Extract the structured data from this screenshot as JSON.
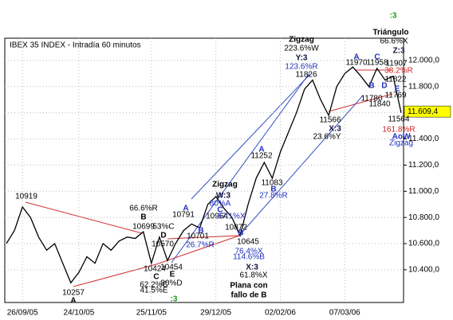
{
  "chart_data": {
    "type": "line",
    "title": "IBEX 35 INDEX - Intradía 60 minutos",
    "color": "#000000",
    "grid": true,
    "categories": [
      null,
      null,
      "26/09/05",
      null,
      null,
      null,
      null,
      null,
      null,
      "24/10/05",
      null,
      null,
      null,
      null,
      null,
      null,
      null,
      null,
      "25/11/05",
      null,
      null,
      null,
      null,
      null,
      null,
      null,
      "29/12/05",
      null,
      null,
      null,
      null,
      null,
      null,
      null,
      "02/02/06",
      null,
      null,
      null,
      null,
      null,
      null,
      null,
      "07/03/06",
      null,
      null,
      null,
      null,
      null,
      null,
      null
    ],
    "values": [
      10600,
      10700,
      10880,
      10800,
      10650,
      10550,
      10600,
      10450,
      10300,
      10380,
      10500,
      10450,
      10600,
      10550,
      10620,
      10650,
      10640,
      10690,
      10450,
      10650,
      10470,
      10600,
      10700,
      10750,
      10720,
      10900,
      10960,
      10870,
      10800,
      10660,
      10900,
      11100,
      11220,
      11100,
      11300,
      11450,
      11600,
      11780,
      11850,
      11700,
      11580,
      11800,
      11900,
      11950,
      11880,
      11800,
      11940,
      11850,
      11880,
      11600
    ],
    "ylim": [
      10150,
      12170
    ],
    "yticks": [
      {
        "value": 10400,
        "label": "10.400,0"
      },
      {
        "value": 10600,
        "label": "10.600,0"
      },
      {
        "value": 10800,
        "label": "10.800,0"
      },
      {
        "value": 11000,
        "label": "11.000,0"
      },
      {
        "value": 11200,
        "label": "11.200,0"
      },
      {
        "value": 11400,
        "label": "11.400,0"
      },
      {
        "value": 11600,
        "label": "11.600,0"
      },
      {
        "value": 11800,
        "label": "11.800,0"
      },
      {
        "value": 12000,
        "label": "12.000,0"
      }
    ],
    "last_value": {
      "value": 11609.4,
      "label": "11.609,4"
    },
    "annotations": [
      ":3",
      "Triángulo",
      "Zigzag",
      "Y:3",
      "223.6%W",
      "123.6%R",
      "11826",
      "A",
      "11970",
      "C",
      "11958",
      "66.6%X",
      "Z:3",
      "11907",
      "38.2%R",
      "11822",
      "B",
      "11780",
      "11840",
      "D",
      "E",
      "11769",
      "11564",
      "161.8%R",
      "AoW",
      "Zigzag",
      "X:3",
      "11566",
      "23.6%Y",
      "A",
      "11252",
      "11083",
      "B",
      "27.8%R",
      "Zigzag",
      "W:3",
      "80%A",
      "C",
      "10964",
      "67.1%X",
      "10872",
      "B",
      "10645",
      "76.4%X",
      "114.6%B",
      "X:3",
      "61.8%X",
      "Plana con",
      "fallo de B",
      "10919",
      "A",
      "10257",
      "B",
      "66.6%R",
      "10699",
      "53%C",
      "D",
      "10570",
      "C",
      "10424",
      "62.2%C",
      "41.5%E",
      "E",
      "10454",
      "80%D",
      ":3",
      "A",
      "10791",
      "10701",
      "B",
      "26.7%R"
    ]
  }
}
